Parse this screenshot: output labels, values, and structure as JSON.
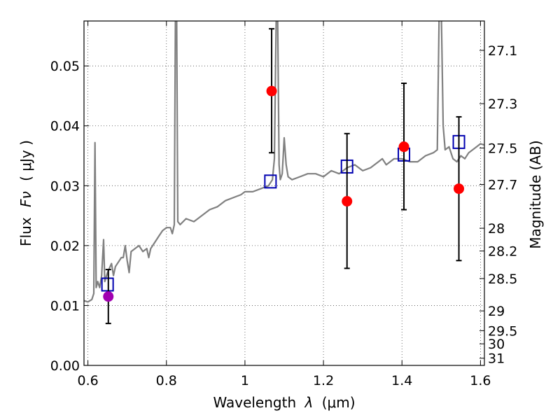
{
  "chart_data": {
    "type": "scatter",
    "title": "",
    "xlabel_prefix": "Wavelength",
    "xlabel_var": "λ",
    "xlabel_unit": "(μm)",
    "ylabel_prefix": "Flux",
    "ylabel_var": "Fν",
    "ylabel_unit": "( μJy )",
    "y2label": "Magnitude (AB)",
    "xlim": [
      0.59,
      1.61
    ],
    "ylim": [
      0.0,
      0.0575
    ],
    "grid": true,
    "xticks": [
      0.6,
      0.8,
      1.0,
      1.2,
      1.4,
      1.6
    ],
    "xtick_labels": [
      "0.6",
      "0.8",
      "1",
      "1.2",
      "1.4",
      "1.6"
    ],
    "yticks": [
      0.0,
      0.01,
      0.02,
      0.03,
      0.04,
      0.05
    ],
    "ytick_labels": [
      "0.00",
      "0.01",
      "0.02",
      "0.03",
      "0.04",
      "0.05"
    ],
    "y2ticks": [
      {
        "label": "27.1",
        "flux": 0.0526
      },
      {
        "label": "27.3",
        "flux": 0.0437
      },
      {
        "label": "27.5",
        "flux": 0.0363
      },
      {
        "label": "27.7",
        "flux": 0.0302
      },
      {
        "label": "28",
        "flux": 0.0229
      },
      {
        "label": "28.2",
        "flux": 0.0191
      },
      {
        "label": "28.5",
        "flux": 0.0145
      },
      {
        "label": "29",
        "flux": 0.0091
      },
      {
        "label": "29.5",
        "flux": 0.0058
      },
      {
        "label": "30",
        "flux": 0.0036
      },
      {
        "label": "31",
        "flux": 0.0012
      }
    ],
    "series": [
      {
        "kind": "line",
        "color": "#808080",
        "points": [
          [
            0.59,
            0.0108
          ],
          [
            0.6,
            0.0106
          ],
          [
            0.61,
            0.011
          ],
          [
            0.615,
            0.012
          ],
          [
            0.618,
            0.0372
          ],
          [
            0.621,
            0.013
          ],
          [
            0.625,
            0.014
          ],
          [
            0.63,
            0.013
          ],
          [
            0.635,
            0.015
          ],
          [
            0.64,
            0.021
          ],
          [
            0.643,
            0.014
          ],
          [
            0.65,
            0.0155
          ],
          [
            0.66,
            0.017
          ],
          [
            0.665,
            0.015
          ],
          [
            0.67,
            0.0165
          ],
          [
            0.68,
            0.0175
          ],
          [
            0.685,
            0.018
          ],
          [
            0.69,
            0.018
          ],
          [
            0.695,
            0.02
          ],
          [
            0.7,
            0.0175
          ],
          [
            0.705,
            0.0155
          ],
          [
            0.71,
            0.019
          ],
          [
            0.72,
            0.0195
          ],
          [
            0.73,
            0.02
          ],
          [
            0.74,
            0.019
          ],
          [
            0.75,
            0.0195
          ],
          [
            0.755,
            0.018
          ],
          [
            0.76,
            0.0195
          ],
          [
            0.77,
            0.0205
          ],
          [
            0.78,
            0.0215
          ],
          [
            0.79,
            0.0225
          ],
          [
            0.8,
            0.023
          ],
          [
            0.81,
            0.023
          ],
          [
            0.815,
            0.022
          ],
          [
            0.82,
            0.0235
          ],
          [
            0.823,
            0.06
          ],
          [
            0.826,
            0.06
          ],
          [
            0.829,
            0.024
          ],
          [
            0.835,
            0.0235
          ],
          [
            0.85,
            0.0245
          ],
          [
            0.87,
            0.024
          ],
          [
            0.89,
            0.025
          ],
          [
            0.91,
            0.026
          ],
          [
            0.93,
            0.0265
          ],
          [
            0.95,
            0.0275
          ],
          [
            0.97,
            0.028
          ],
          [
            0.99,
            0.0285
          ],
          [
            1.0,
            0.029
          ],
          [
            1.02,
            0.029
          ],
          [
            1.04,
            0.0295
          ],
          [
            1.06,
            0.03
          ],
          [
            1.07,
            0.031
          ],
          [
            1.075,
            0.0345
          ],
          [
            1.08,
            0.06
          ],
          [
            1.083,
            0.06
          ],
          [
            1.087,
            0.0335
          ],
          [
            1.09,
            0.031
          ],
          [
            1.095,
            0.032
          ],
          [
            1.1,
            0.038
          ],
          [
            1.105,
            0.0335
          ],
          [
            1.11,
            0.0315
          ],
          [
            1.12,
            0.031
          ],
          [
            1.14,
            0.0315
          ],
          [
            1.16,
            0.032
          ],
          [
            1.18,
            0.032
          ],
          [
            1.2,
            0.0315
          ],
          [
            1.22,
            0.0325
          ],
          [
            1.24,
            0.032
          ],
          [
            1.26,
            0.033
          ],
          [
            1.28,
            0.0335
          ],
          [
            1.3,
            0.0325
          ],
          [
            1.32,
            0.033
          ],
          [
            1.34,
            0.034
          ],
          [
            1.35,
            0.0345
          ],
          [
            1.36,
            0.0335
          ],
          [
            1.38,
            0.0345
          ],
          [
            1.4,
            0.0345
          ],
          [
            1.42,
            0.034
          ],
          [
            1.44,
            0.034
          ],
          [
            1.46,
            0.035
          ],
          [
            1.48,
            0.0355
          ],
          [
            1.49,
            0.036
          ],
          [
            1.495,
            0.06
          ],
          [
            1.5,
            0.06
          ],
          [
            1.505,
            0.04
          ],
          [
            1.51,
            0.036
          ],
          [
            1.52,
            0.0365
          ],
          [
            1.53,
            0.0345
          ],
          [
            1.54,
            0.034
          ],
          [
            1.55,
            0.035
          ],
          [
            1.56,
            0.0345
          ],
          [
            1.57,
            0.0355
          ],
          [
            1.58,
            0.036
          ],
          [
            1.59,
            0.0365
          ],
          [
            1.6,
            0.037
          ],
          [
            1.61,
            0.0368
          ]
        ]
      },
      {
        "kind": "model-squares",
        "color": "#0000b0",
        "points": [
          [
            0.65,
            0.0135
          ],
          [
            1.065,
            0.0307
          ],
          [
            1.26,
            0.0332
          ],
          [
            1.405,
            0.0352
          ],
          [
            1.545,
            0.0373
          ]
        ]
      },
      {
        "kind": "observed",
        "color": "#ff0000",
        "points": [
          {
            "x": 1.068,
            "y": 0.0458,
            "lo": 0.0355,
            "hi": 0.0562
          },
          {
            "x": 1.26,
            "y": 0.0274,
            "lo": 0.0162,
            "hi": 0.0387
          },
          {
            "x": 1.405,
            "y": 0.0365,
            "lo": 0.026,
            "hi": 0.0471
          },
          {
            "x": 1.545,
            "y": 0.0295,
            "lo": 0.0175,
            "hi": 0.0415
          }
        ]
      },
      {
        "kind": "observed-alt",
        "color": "#a000b0",
        "points": [
          {
            "x": 0.652,
            "y": 0.0115,
            "lo": 0.007,
            "hi": 0.016
          }
        ]
      }
    ]
  }
}
